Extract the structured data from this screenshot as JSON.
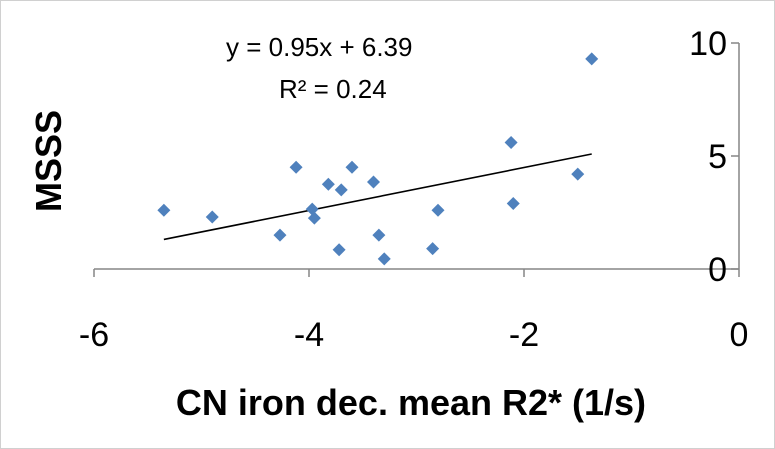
{
  "chart_data": {
    "type": "scatter",
    "title": "",
    "xlabel": "CN iron dec. mean R2* (1/s)",
    "ylabel": "MSSS",
    "xlim": [
      -6,
      0
    ],
    "ylim": [
      0,
      10
    ],
    "x_ticks": [
      "-6",
      "-4",
      "-2",
      "0"
    ],
    "y_ticks": [
      "0",
      "5",
      "10"
    ],
    "x_tick_values": [
      -6,
      -4,
      -2,
      0
    ],
    "y_tick_values": [
      0,
      5,
      10
    ],
    "grid": false,
    "marker": "diamond",
    "marker_color": "#4f81bd",
    "trendline_color": "#000000",
    "series": [
      {
        "points": [
          {
            "x": -5.35,
            "y": 2.6
          },
          {
            "x": -4.9,
            "y": 2.3
          },
          {
            "x": -4.27,
            "y": 1.5
          },
          {
            "x": -4.12,
            "y": 4.5
          },
          {
            "x": -3.97,
            "y": 2.65
          },
          {
            "x": -3.95,
            "y": 2.25
          },
          {
            "x": -3.82,
            "y": 3.75
          },
          {
            "x": -3.72,
            "y": 0.85
          },
          {
            "x": -3.7,
            "y": 3.5
          },
          {
            "x": -3.6,
            "y": 4.5
          },
          {
            "x": -3.4,
            "y": 3.85
          },
          {
            "x": -3.35,
            "y": 1.5
          },
          {
            "x": -3.3,
            "y": 0.45
          },
          {
            "x": -2.85,
            "y": 0.9
          },
          {
            "x": -2.8,
            "y": 2.6
          },
          {
            "x": -2.12,
            "y": 5.6
          },
          {
            "x": -2.1,
            "y": 2.9
          },
          {
            "x": -1.5,
            "y": 4.2
          },
          {
            "x": -1.37,
            "y": 9.3
          }
        ]
      }
    ],
    "trendline": {
      "slope": 0.95,
      "intercept": 6.39,
      "x_range": [
        -5.35,
        -1.37
      ],
      "equation": "y = 0.95x + 6.39",
      "r_squared": "R² = 0.24"
    }
  }
}
